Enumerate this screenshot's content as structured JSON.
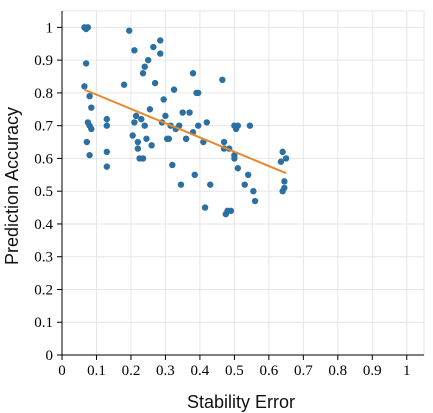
{
  "chart_data": {
    "type": "scatter",
    "xlabel": "Stability Error",
    "ylabel": "Prediction Accuracy",
    "xlim": [
      0,
      1.05
    ],
    "ylim": [
      0,
      1.05
    ],
    "xticks": [
      0,
      0.1,
      0.2,
      0.3,
      0.4,
      0.5,
      0.6,
      0.7,
      0.8,
      0.9,
      1
    ],
    "xtick_labels": [
      "0",
      "0.1",
      "0.2",
      "0.3",
      "0.4",
      "0.5",
      "0.6",
      "0.7",
      "0.8",
      "0.9",
      "1"
    ],
    "yticks": [
      0,
      0.1,
      0.2,
      0.3,
      0.4,
      0.5,
      0.6,
      0.7,
      0.8,
      0.9,
      1
    ],
    "ytick_labels": [
      "0",
      "0.1",
      "0.2",
      "0.3",
      "0.4",
      "0.5",
      "0.6",
      "0.7",
      "0.8",
      "0.9",
      "1"
    ],
    "grid": true,
    "colors": {
      "points": "#2b6fa3",
      "trend": "#e8882e"
    },
    "series": [
      {
        "values": [
          [
            0.065,
            1.0
          ],
          [
            0.07,
            0.995
          ],
          [
            0.075,
            1.0
          ],
          [
            0.07,
            0.89
          ],
          [
            0.065,
            0.82
          ],
          [
            0.08,
            0.79
          ],
          [
            0.085,
            0.755
          ],
          [
            0.08,
            0.7
          ],
          [
            0.075,
            0.71
          ],
          [
            0.072,
            0.65
          ],
          [
            0.085,
            0.69
          ],
          [
            0.08,
            0.61
          ],
          [
            0.13,
            0.72
          ],
          [
            0.13,
            0.7
          ],
          [
            0.13,
            0.62
          ],
          [
            0.13,
            0.575
          ],
          [
            0.18,
            0.825
          ],
          [
            0.195,
            0.99
          ],
          [
            0.21,
            0.93
          ],
          [
            0.215,
            0.73
          ],
          [
            0.21,
            0.71
          ],
          [
            0.205,
            0.67
          ],
          [
            0.22,
            0.65
          ],
          [
            0.22,
            0.63
          ],
          [
            0.225,
            0.6
          ],
          [
            0.235,
            0.6
          ],
          [
            0.23,
            0.72
          ],
          [
            0.24,
            0.7
          ],
          [
            0.245,
            0.66
          ],
          [
            0.235,
            0.86
          ],
          [
            0.24,
            0.88
          ],
          [
            0.25,
            0.9
          ],
          [
            0.255,
            0.75
          ],
          [
            0.26,
            0.64
          ],
          [
            0.265,
            0.94
          ],
          [
            0.27,
            0.83
          ],
          [
            0.285,
            0.92
          ],
          [
            0.285,
            0.96
          ],
          [
            0.29,
            0.71
          ],
          [
            0.295,
            0.78
          ],
          [
            0.3,
            0.73
          ],
          [
            0.305,
            0.66
          ],
          [
            0.31,
            0.66
          ],
          [
            0.315,
            0.7
          ],
          [
            0.325,
            0.81
          ],
          [
            0.32,
            0.58
          ],
          [
            0.33,
            0.69
          ],
          [
            0.34,
            0.7
          ],
          [
            0.345,
            0.52
          ],
          [
            0.35,
            0.74
          ],
          [
            0.36,
            0.66
          ],
          [
            0.36,
            0.66
          ],
          [
            0.37,
            0.74
          ],
          [
            0.38,
            0.68
          ],
          [
            0.38,
            0.86
          ],
          [
            0.39,
            0.8
          ],
          [
            0.395,
            0.8
          ],
          [
            0.395,
            0.7
          ],
          [
            0.385,
            0.55
          ],
          [
            0.41,
            0.65
          ],
          [
            0.415,
            0.45
          ],
          [
            0.42,
            0.71
          ],
          [
            0.43,
            0.52
          ],
          [
            0.465,
            0.84
          ],
          [
            0.47,
            0.65
          ],
          [
            0.47,
            0.63
          ],
          [
            0.48,
            0.44
          ],
          [
            0.475,
            0.43
          ],
          [
            0.49,
            0.44
          ],
          [
            0.485,
            0.63
          ],
          [
            0.5,
            0.61
          ],
          [
            0.5,
            0.6
          ],
          [
            0.5,
            0.7
          ],
          [
            0.505,
            0.69
          ],
          [
            0.51,
            0.57
          ],
          [
            0.51,
            0.7
          ],
          [
            0.53,
            0.52
          ],
          [
            0.54,
            0.55
          ],
          [
            0.545,
            0.7
          ],
          [
            0.555,
            0.5
          ],
          [
            0.56,
            0.47
          ],
          [
            0.635,
            0.59
          ],
          [
            0.64,
            0.62
          ],
          [
            0.64,
            0.5
          ],
          [
            0.645,
            0.51
          ],
          [
            0.645,
            0.53
          ],
          [
            0.65,
            0.6
          ]
        ]
      }
    ],
    "trendline": [
      [
        0.065,
        0.81
      ],
      [
        0.65,
        0.555
      ]
    ]
  }
}
